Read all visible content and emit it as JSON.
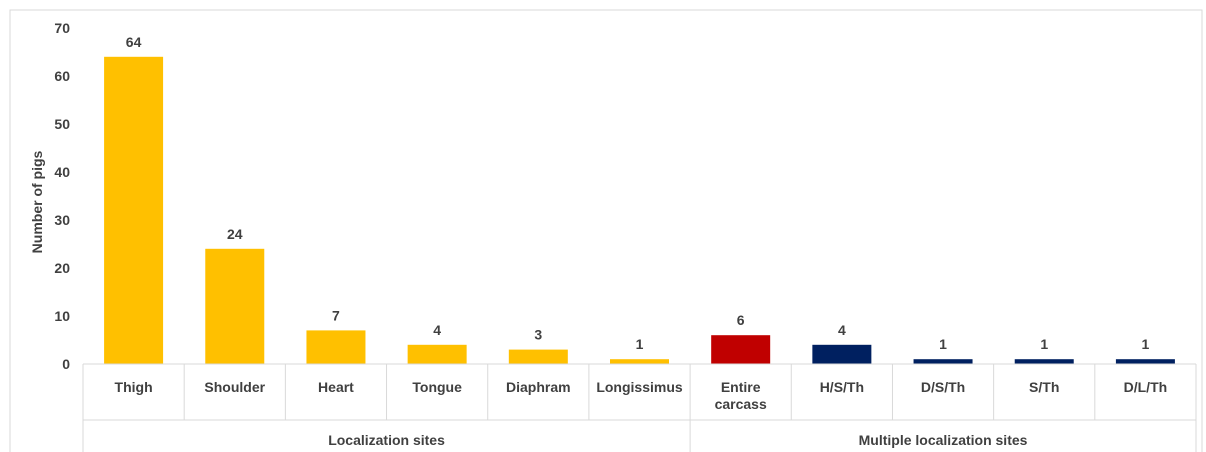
{
  "chart_data": {
    "type": "bar",
    "ylabel": "Number of pigs",
    "ylim": [
      0,
      70
    ],
    "yticks": [
      0,
      10,
      20,
      30,
      40,
      50,
      60,
      70
    ],
    "grid": false,
    "categories": [
      {
        "label": [
          "Thigh"
        ],
        "value": 64,
        "color": "#ffc000"
      },
      {
        "label": [
          "Shoulder"
        ],
        "value": 24,
        "color": "#ffc000"
      },
      {
        "label": [
          "Heart"
        ],
        "value": 7,
        "color": "#ffc000"
      },
      {
        "label": [
          "Tongue"
        ],
        "value": 4,
        "color": "#ffc000"
      },
      {
        "label": [
          "Diaphram"
        ],
        "value": 3,
        "color": "#ffc000"
      },
      {
        "label": [
          "Longissimus"
        ],
        "value": 1,
        "color": "#ffc000"
      },
      {
        "label": [
          "Entire",
          "carcass"
        ],
        "value": 6,
        "color": "#c00000"
      },
      {
        "label": [
          "H/S/Th"
        ],
        "value": 4,
        "color": "#002060"
      },
      {
        "label": [
          "D/S/Th"
        ],
        "value": 1,
        "color": "#002060"
      },
      {
        "label": [
          "S/Th"
        ],
        "value": 1,
        "color": "#002060"
      },
      {
        "label": [
          "D/L/Th"
        ],
        "value": 1,
        "color": "#002060"
      }
    ],
    "groups": [
      {
        "label": "Localization sites",
        "count": 6
      },
      {
        "label": "Multiple localization sites",
        "count": 5
      }
    ]
  }
}
